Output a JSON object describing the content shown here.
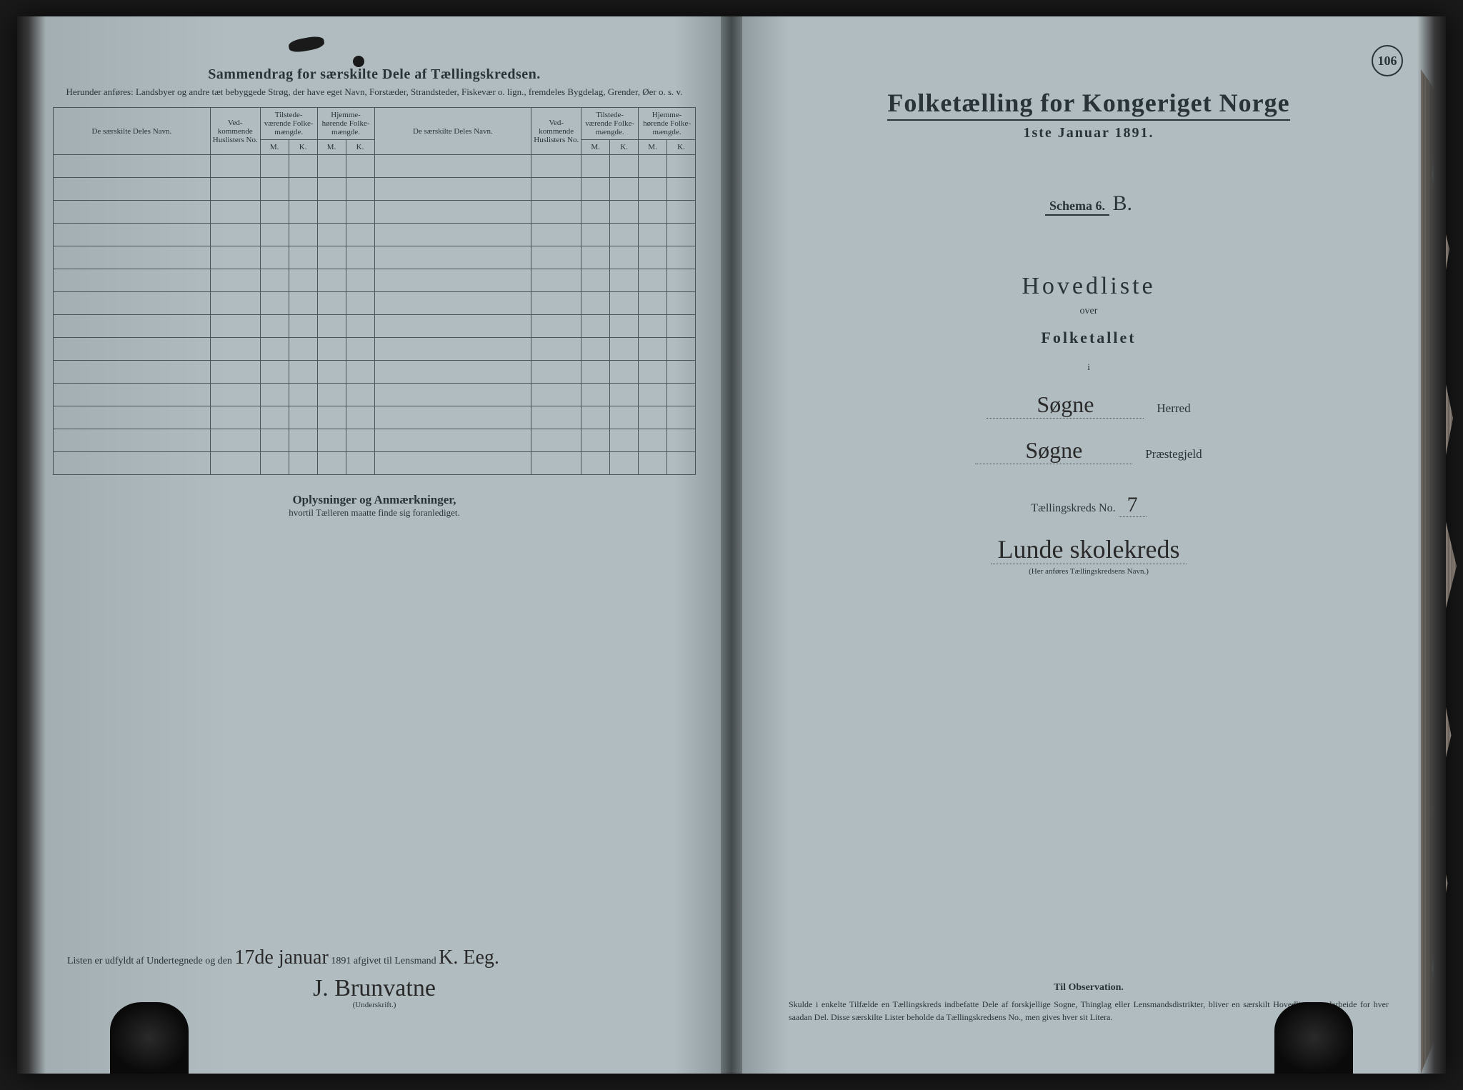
{
  "page_number": "106",
  "colors": {
    "paper": "#b0bcc0",
    "ink": "#2a3438",
    "dark": "#1a1a1a"
  },
  "left_page": {
    "title": "Sammendrag for særskilte Dele af Tællingskredsen.",
    "subtitle": "Herunder anføres: Landsbyer og andre tæt bebyggede Strøg, der have eget Navn, Forstæder, Strandsteder, Fiskevær o. lign., fremdeles Bygdelag, Grender, Øer o. s. v.",
    "table": {
      "col_name": "De særskilte Deles Navn.",
      "col_no": "Ved-kommende Huslisters No.",
      "col_present": "Tilstede-værende Folke-mængde.",
      "col_home": "Hjemme-hørende Folke-mængde.",
      "sub_m": "M.",
      "sub_k": "K.",
      "blank_rows": 14
    },
    "notes_title": "Oplysninger og Anmærkninger,",
    "notes_sub": "hvortil Tælleren maatte finde sig foranlediget.",
    "signature": {
      "prefix": "Listen er udfyldt af Undertegnede og den",
      "date_hw": "17de januar",
      "year": "1891 afgivet til Lensmand",
      "lensmand_hw": "K. Eeg.",
      "signer_hw": "J. Brunvatne",
      "under": "(Underskrift.)"
    }
  },
  "right_page": {
    "census_title": "Folketælling for Kongeriget Norge",
    "census_date": "1ste Januar 1891.",
    "schema_label": "Schema 6.",
    "schema_letter": "B.",
    "hovedliste": "Hovedliste",
    "over": "over",
    "folketallet": "Folketallet",
    "i": "i",
    "herred_value": "Søgne",
    "herred_label": "Herred",
    "prestegjeld_value": "Søgne",
    "prestegjeld_label": "Præstegjeld",
    "kreds_label_pre": "Tællingskreds No.",
    "kreds_no": "7",
    "kreds_name": "Lunde skolekreds",
    "kreds_note": "(Her anføres Tællingskredsens Navn.)",
    "observation_title": "Til Observation.",
    "observation_text": "Skulde i enkelte Tilfælde en Tællingskreds indbefatte Dele af forskjellige Sogne, Thinglag eller Lensmandsdistrikter, bliver en særskilt Hovedliste at udarbeide for hver saadan Del. Disse særskilte Lister beholde da Tællingskredsens No., men gives hver sit Litera."
  }
}
